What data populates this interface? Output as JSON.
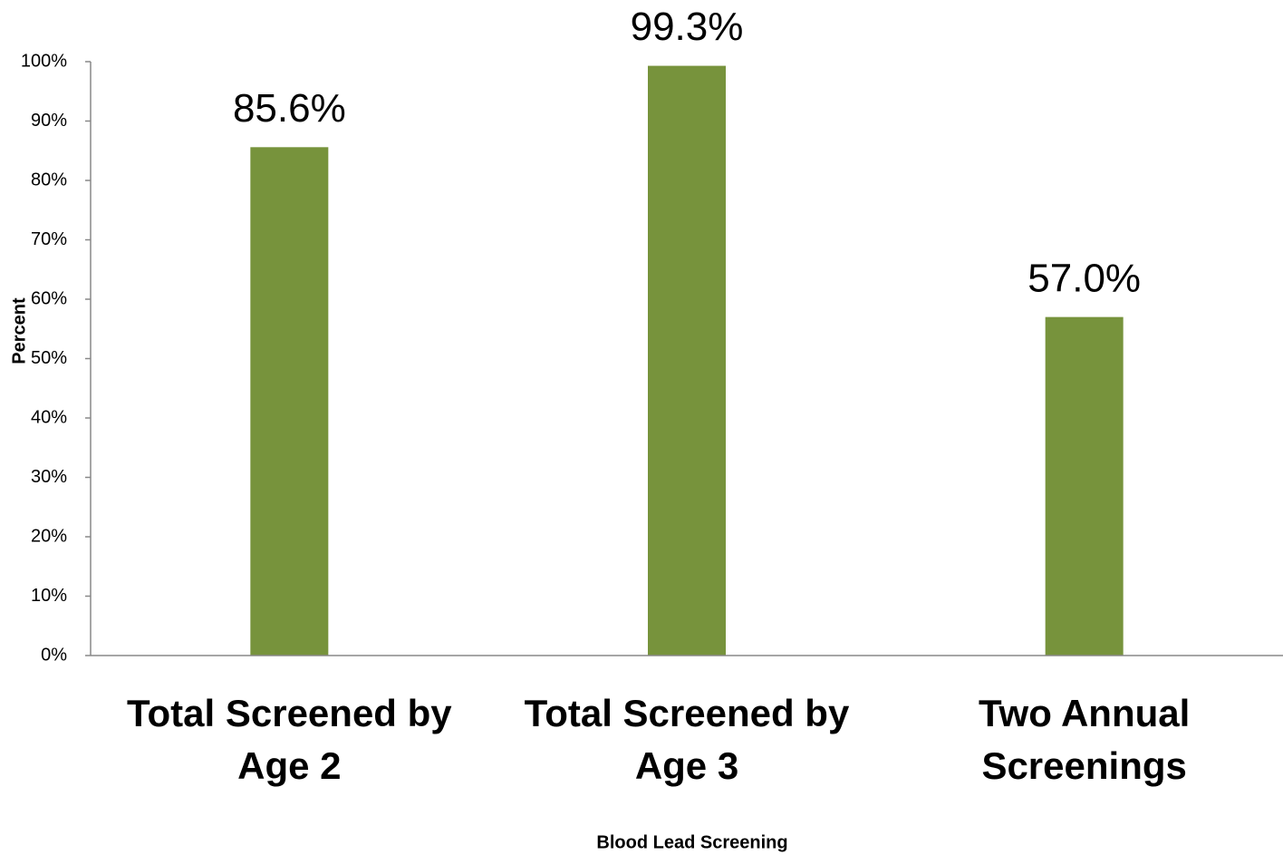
{
  "chart_data": {
    "type": "bar",
    "categories": [
      "Total Screened by Age 2",
      "Total Screened by Age 3",
      "Two Annual Screenings"
    ],
    "values": [
      85.6,
      99.3,
      57.0
    ],
    "value_labels": [
      "85.6%",
      "99.3%",
      "57.0%"
    ],
    "color": "#77933c",
    "y_label": "Percent",
    "x_label": "Blood Lead Screening",
    "ylim": [
      0,
      100
    ],
    "yticks": [
      {
        "value": 0,
        "label": "0%"
      },
      {
        "value": 10,
        "label": "10%"
      },
      {
        "value": 20,
        "label": "20%"
      },
      {
        "value": 30,
        "label": "30%"
      },
      {
        "value": 40,
        "label": "40%"
      },
      {
        "value": 50,
        "label": "50%"
      },
      {
        "value": 60,
        "label": "60%"
      },
      {
        "value": 70,
        "label": "70%"
      },
      {
        "value": 80,
        "label": "80%"
      },
      {
        "value": 90,
        "label": "90%"
      },
      {
        "value": 100,
        "label": "100%"
      }
    ],
    "grid": false
  }
}
